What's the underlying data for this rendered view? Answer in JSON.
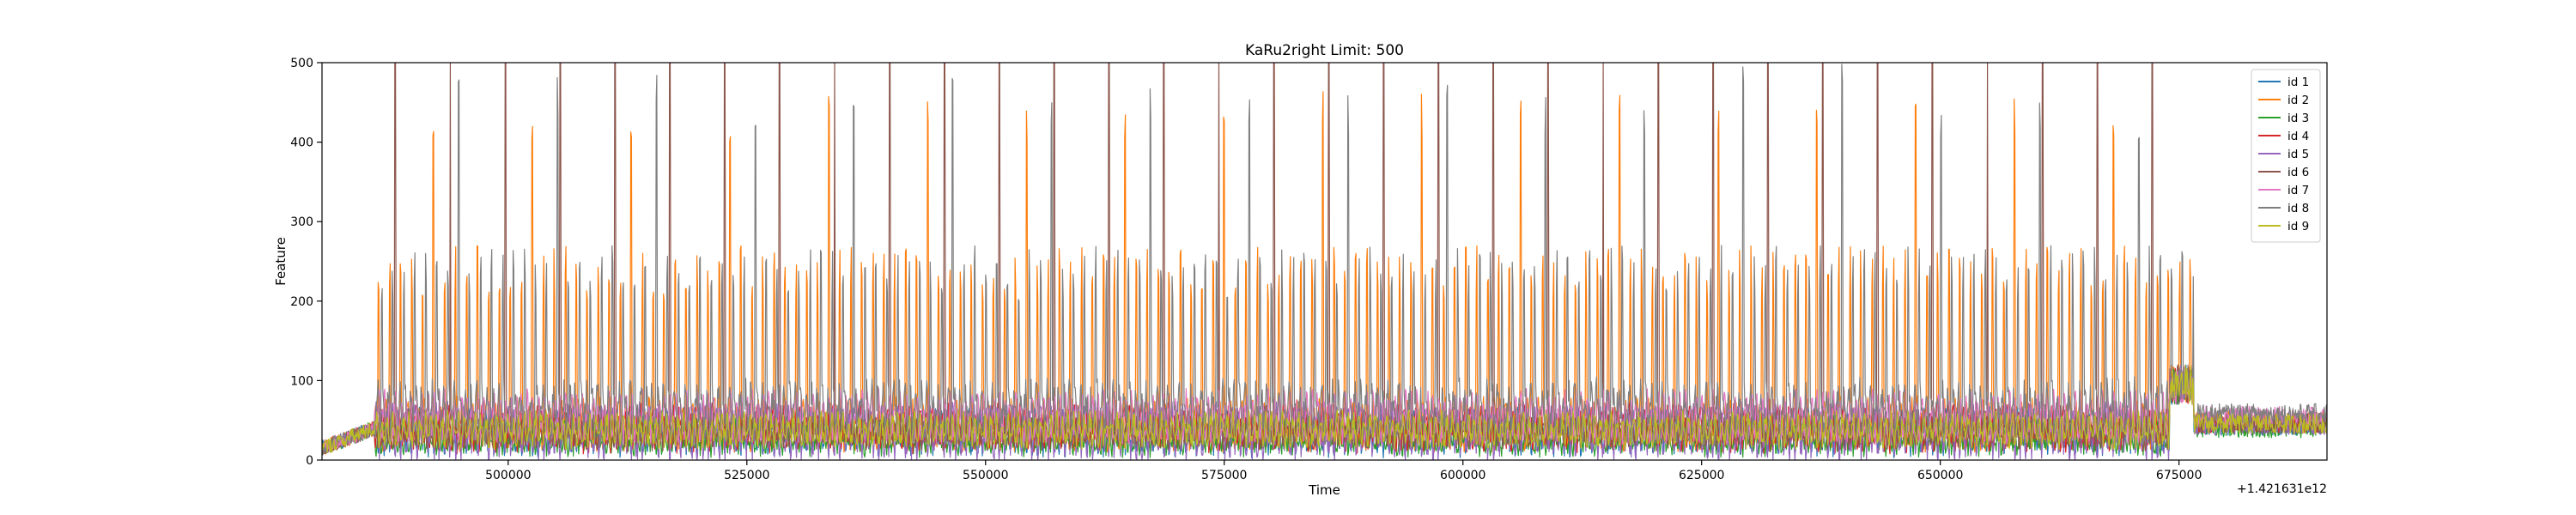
{
  "chart_data": {
    "type": "line",
    "title": "KaRu2right Limit: 500",
    "xlabel": "Time",
    "ylabel": "Feature",
    "x_offset_label": "+1.421631e12",
    "xlim": [
      480500,
      690500
    ],
    "ylim": [
      0,
      500
    ],
    "x_ticks": [
      500000,
      525000,
      550000,
      575000,
      600000,
      625000,
      650000,
      675000
    ],
    "x_tick_labels": [
      "500000",
      "525000",
      "550000",
      "575000",
      "600000",
      "625000",
      "650000",
      "675000"
    ],
    "y_ticks": [
      0,
      100,
      200,
      300,
      400,
      500
    ],
    "y_tick_labels": [
      "0",
      "100",
      "200",
      "300",
      "400",
      "500"
    ],
    "grid": false,
    "legend_position": "top-right",
    "active_segment": [
      486000,
      676500
    ],
    "cycle_period": 1150,
    "series": [
      {
        "name": "id 1",
        "color": "#1f77b4",
        "baseline": 35,
        "amplitude": 18
      },
      {
        "name": "id 2",
        "color": "#ff7f0e",
        "baseline": 45,
        "amplitude": 20,
        "peak_range": [
          200,
          270
        ],
        "tall_peak_range": [
          400,
          470
        ]
      },
      {
        "name": "id 3",
        "color": "#2ca02c",
        "baseline": 30,
        "amplitude": 15
      },
      {
        "name": "id 4",
        "color": "#d62728",
        "baseline": 40,
        "amplitude": 18
      },
      {
        "name": "id 5",
        "color": "#9467bd",
        "baseline": 35,
        "amplitude": 22
      },
      {
        "name": "id 6",
        "color": "#8c564b",
        "baseline": 40,
        "amplitude": 16,
        "spike_value": 500
      },
      {
        "name": "id 7",
        "color": "#e377c2",
        "baseline": 55,
        "amplitude": 20
      },
      {
        "name": "id 8",
        "color": "#7f7f7f",
        "baseline": 60,
        "amplitude": 25,
        "peak_range": [
          200,
          270
        ],
        "tall_peak_range": [
          400,
          500
        ]
      },
      {
        "name": "id 9",
        "color": "#bcbd22",
        "baseline": 38,
        "amplitude": 14
      }
    ]
  }
}
